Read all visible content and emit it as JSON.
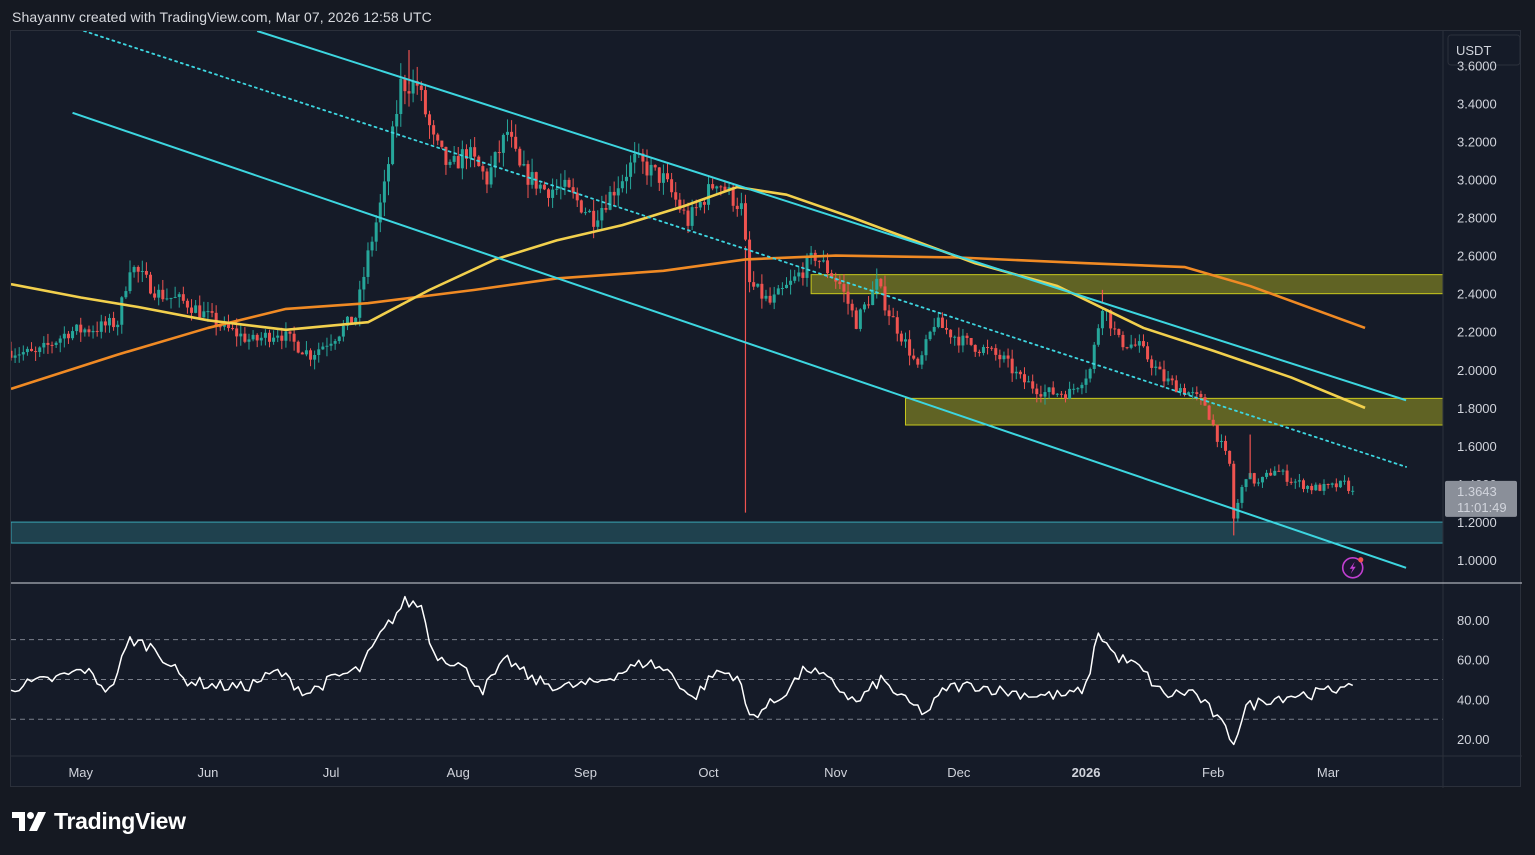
{
  "header": {
    "attribution": "Shayannv created with TradingView.com, Mar 07, 2026 12:58 UTC"
  },
  "footer": {
    "brand": "TradingView"
  },
  "colors": {
    "background": "#151b28",
    "bull": "#26a69a",
    "bear": "#ef5350",
    "channel": "#3dd6e0",
    "ma_fast": "#f2d04d",
    "ma_slow": "#f08a24",
    "zone_yellow": "#c8c81e",
    "zone_blue": "#3aa5b5",
    "rsi": "#ffffff",
    "badge": "#8a8f99"
  },
  "chart_data": [
    {
      "type": "candlestick",
      "currency": "USDT",
      "y_scale": "linear",
      "ylim": [
        0.88,
        3.78
      ],
      "y_ticks": [
        "3.6000",
        "3.4000",
        "3.2000",
        "3.0000",
        "2.8000",
        "2.6000",
        "2.4000",
        "2.2000",
        "2.0000",
        "1.8000",
        "1.6000",
        "1.2000",
        "1.0000"
      ],
      "y_tick_values": [
        3.6,
        3.4,
        3.2,
        3.0,
        2.8,
        2.6,
        2.4,
        2.2,
        2.0,
        1.8,
        1.6,
        1.2,
        1.0
      ],
      "x_range": [
        "2025-04-14",
        "2026-03-29"
      ],
      "x_ticks": [
        {
          "label": "May",
          "date": "2025-05-01",
          "bold": false
        },
        {
          "label": "Jun",
          "date": "2025-06-01",
          "bold": false
        },
        {
          "label": "Jul",
          "date": "2025-07-01",
          "bold": false
        },
        {
          "label": "Aug",
          "date": "2025-08-01",
          "bold": false
        },
        {
          "label": "Sep",
          "date": "2025-09-01",
          "bold": false
        },
        {
          "label": "Oct",
          "date": "2025-10-01",
          "bold": false
        },
        {
          "label": "Nov",
          "date": "2025-11-01",
          "bold": false
        },
        {
          "label": "Dec",
          "date": "2025-12-01",
          "bold": false
        },
        {
          "label": "2026",
          "date": "2026-01-01",
          "bold": true
        },
        {
          "label": "Feb",
          "date": "2026-02-01",
          "bold": false
        },
        {
          "label": "Mar",
          "date": "2026-03-01",
          "bold": false
        }
      ],
      "price_path": [
        [
          "2025-04-14",
          2.1
        ],
        [
          "2025-04-20",
          2.08
        ],
        [
          "2025-04-28",
          2.2
        ],
        [
          "2025-05-05",
          2.22
        ],
        [
          "2025-05-10",
          2.25
        ],
        [
          "2025-05-13",
          2.55
        ],
        [
          "2025-05-20",
          2.4
        ],
        [
          "2025-05-27",
          2.35
        ],
        [
          "2025-06-05",
          2.22
        ],
        [
          "2025-06-12",
          2.15
        ],
        [
          "2025-06-18",
          2.2
        ],
        [
          "2025-06-26",
          2.08
        ],
        [
          "2025-07-02",
          2.18
        ],
        [
          "2025-07-07",
          2.28
        ],
        [
          "2025-07-10",
          2.6
        ],
        [
          "2025-07-14",
          2.95
        ],
        [
          "2025-07-18",
          3.5
        ],
        [
          "2025-07-22",
          3.5
        ],
        [
          "2025-07-26",
          3.2
        ],
        [
          "2025-07-30",
          3.05
        ],
        [
          "2025-08-03",
          3.15
        ],
        [
          "2025-08-08",
          3.0
        ],
        [
          "2025-08-13",
          3.25
        ],
        [
          "2025-08-16",
          3.05
        ],
        [
          "2025-08-22",
          2.95
        ],
        [
          "2025-08-27",
          2.95
        ],
        [
          "2025-09-03",
          2.8
        ],
        [
          "2025-09-08",
          2.95
        ],
        [
          "2025-09-13",
          3.1
        ],
        [
          "2025-09-20",
          3.0
        ],
        [
          "2025-09-26",
          2.78
        ],
        [
          "2025-10-03",
          3.0
        ],
        [
          "2025-10-09",
          2.85
        ],
        [
          "2025-10-11",
          2.45
        ],
        [
          "2025-10-16",
          2.35
        ],
        [
          "2025-10-21",
          2.45
        ],
        [
          "2025-10-27",
          2.6
        ],
        [
          "2025-11-02",
          2.45
        ],
        [
          "2025-11-06",
          2.25
        ],
        [
          "2025-11-11",
          2.45
        ],
        [
          "2025-11-14",
          2.3
        ],
        [
          "2025-11-19",
          2.1
        ],
        [
          "2025-11-21",
          2.0
        ],
        [
          "2025-11-25",
          2.25
        ],
        [
          "2025-12-02",
          2.15
        ],
        [
          "2025-12-08",
          2.1
        ],
        [
          "2025-12-12",
          2.05
        ],
        [
          "2025-12-16",
          1.95
        ],
        [
          "2025-12-22",
          1.88
        ],
        [
          "2025-12-28",
          1.88
        ],
        [
          "2026-01-02",
          2.0
        ],
        [
          "2026-01-05",
          2.35
        ],
        [
          "2026-01-09",
          2.15
        ],
        [
          "2026-01-14",
          2.12
        ],
        [
          "2026-01-20",
          1.95
        ],
        [
          "2026-01-26",
          1.88
        ],
        [
          "2026-01-30",
          1.82
        ],
        [
          "2026-02-02",
          1.65
        ],
        [
          "2026-02-05",
          1.5
        ],
        [
          "2026-02-06",
          1.22
        ],
        [
          "2026-02-09",
          1.45
        ],
        [
          "2026-02-12",
          1.4
        ],
        [
          "2026-02-16",
          1.48
        ],
        [
          "2026-02-20",
          1.42
        ],
        [
          "2026-02-25",
          1.38
        ],
        [
          "2026-03-01",
          1.38
        ],
        [
          "2026-03-05",
          1.4
        ],
        [
          "2026-03-07",
          1.3643
        ]
      ],
      "spikes": [
        {
          "date": "2025-10-10",
          "low": 1.25
        },
        {
          "date": "2026-02-06",
          "low": 1.13
        },
        {
          "date": "2025-07-20",
          "high": 3.68
        },
        {
          "date": "2026-01-05",
          "high": 2.42
        },
        {
          "date": "2026-02-10",
          "high": 1.66
        }
      ],
      "ma_fast": [
        [
          "2025-04-14",
          2.45
        ],
        [
          "2025-05-01",
          2.38
        ],
        [
          "2025-05-15",
          2.33
        ],
        [
          "2025-06-01",
          2.26
        ],
        [
          "2025-06-20",
          2.21
        ],
        [
          "2025-07-10",
          2.25
        ],
        [
          "2025-07-25",
          2.42
        ],
        [
          "2025-08-10",
          2.58
        ],
        [
          "2025-08-25",
          2.68
        ],
        [
          "2025-09-10",
          2.76
        ],
        [
          "2025-09-25",
          2.86
        ],
        [
          "2025-10-08",
          2.96
        ],
        [
          "2025-10-20",
          2.92
        ],
        [
          "2025-11-05",
          2.8
        ],
        [
          "2025-11-20",
          2.68
        ],
        [
          "2025-12-05",
          2.56
        ],
        [
          "2025-12-25",
          2.44
        ],
        [
          "2026-01-15",
          2.22
        ],
        [
          "2026-02-01",
          2.1
        ],
        [
          "2026-02-20",
          1.96
        ],
        [
          "2026-03-10",
          1.8
        ]
      ],
      "ma_slow": [
        [
          "2025-04-14",
          1.9
        ],
        [
          "2025-05-10",
          2.08
        ],
        [
          "2025-06-01",
          2.22
        ],
        [
          "2025-06-20",
          2.32
        ],
        [
          "2025-07-10",
          2.35
        ],
        [
          "2025-08-05",
          2.42
        ],
        [
          "2025-08-25",
          2.48
        ],
        [
          "2025-09-20",
          2.52
        ],
        [
          "2025-10-10",
          2.58
        ],
        [
          "2025-11-01",
          2.6
        ],
        [
          "2025-12-01",
          2.59
        ],
        [
          "2026-01-01",
          2.56
        ],
        [
          "2026-01-25",
          2.54
        ],
        [
          "2026-02-10",
          2.44
        ],
        [
          "2026-03-10",
          2.22
        ]
      ],
      "channel_lines": [
        {
          "style": "solid",
          "from": [
            "2025-06-13",
            3.78
          ],
          "to": [
            "2026-03-20",
            1.84
          ]
        },
        {
          "style": "solid",
          "from": [
            "2025-04-29",
            3.35
          ],
          "to": [
            "2026-03-20",
            0.96
          ]
        },
        {
          "style": "dotted",
          "from": [
            "2025-04-29",
            3.8
          ],
          "to": [
            "2026-03-20",
            1.49
          ]
        }
      ],
      "zones": [
        {
          "color": "yellow",
          "x_start": "2025-10-26",
          "x_end": "2026-03-29",
          "y_low": 2.4,
          "y_high": 2.5
        },
        {
          "color": "yellow",
          "x_start": "2025-11-18",
          "x_end": "2026-03-29",
          "y_low": 1.71,
          "y_high": 1.85
        },
        {
          "color": "blue",
          "x_start": "2025-04-14",
          "x_end": "2026-03-29",
          "y_low": 1.09,
          "y_high": 1.2
        }
      ],
      "last_price": {
        "value": 1.3643,
        "label": "1.3643",
        "countdown": "11:01:49"
      },
      "partial_tick": "1.4000"
    },
    {
      "type": "line",
      "indicator": "rsi",
      "ylim": [
        12,
        98
      ],
      "y_ticks": [
        "80.00",
        "60.00",
        "40.00",
        "20.00"
      ],
      "y_tick_values": [
        80,
        60,
        40,
        20
      ],
      "levels": [
        70,
        50,
        30
      ],
      "series": [
        [
          "2025-04-14",
          46
        ],
        [
          "2025-04-24",
          50
        ],
        [
          "2025-05-02",
          55
        ],
        [
          "2025-05-08",
          44
        ],
        [
          "2025-05-13",
          70
        ],
        [
          "2025-05-19",
          66
        ],
        [
          "2025-05-26",
          50
        ],
        [
          "2025-06-02",
          47
        ],
        [
          "2025-06-10",
          46
        ],
        [
          "2025-06-18",
          54
        ],
        [
          "2025-06-25",
          43
        ],
        [
          "2025-07-02",
          51
        ],
        [
          "2025-07-08",
          55
        ],
        [
          "2025-07-13",
          72
        ],
        [
          "2025-07-19",
          89
        ],
        [
          "2025-07-23",
          87
        ],
        [
          "2025-07-26",
          63
        ],
        [
          "2025-08-01",
          58
        ],
        [
          "2025-08-07",
          45
        ],
        [
          "2025-08-13",
          60
        ],
        [
          "2025-08-19",
          50
        ],
        [
          "2025-08-26",
          46
        ],
        [
          "2025-09-03",
          48
        ],
        [
          "2025-09-10",
          54
        ],
        [
          "2025-09-16",
          59
        ],
        [
          "2025-09-22",
          53
        ],
        [
          "2025-09-27",
          40
        ],
        [
          "2025-10-03",
          54
        ],
        [
          "2025-10-08",
          52
        ],
        [
          "2025-10-11",
          31
        ],
        [
          "2025-10-18",
          40
        ],
        [
          "2025-10-25",
          56
        ],
        [
          "2025-11-01",
          47
        ],
        [
          "2025-11-06",
          38
        ],
        [
          "2025-11-12",
          50
        ],
        [
          "2025-11-18",
          39
        ],
        [
          "2025-11-23",
          33
        ],
        [
          "2025-11-28",
          46
        ],
        [
          "2025-12-05",
          47
        ],
        [
          "2025-12-12",
          44
        ],
        [
          "2025-12-20",
          42
        ],
        [
          "2025-12-28",
          42
        ],
        [
          "2026-01-01",
          46
        ],
        [
          "2026-01-04",
          74
        ],
        [
          "2026-01-08",
          62
        ],
        [
          "2026-01-14",
          56
        ],
        [
          "2026-01-20",
          42
        ],
        [
          "2026-01-27",
          44
        ],
        [
          "2026-02-01",
          33
        ],
        [
          "2026-02-06",
          19
        ],
        [
          "2026-02-09",
          36
        ],
        [
          "2026-02-14",
          40
        ],
        [
          "2026-02-20",
          42
        ],
        [
          "2026-02-26",
          43
        ],
        [
          "2026-03-03",
          45
        ],
        [
          "2026-03-05",
          49
        ],
        [
          "2026-03-07",
          44
        ]
      ]
    }
  ]
}
